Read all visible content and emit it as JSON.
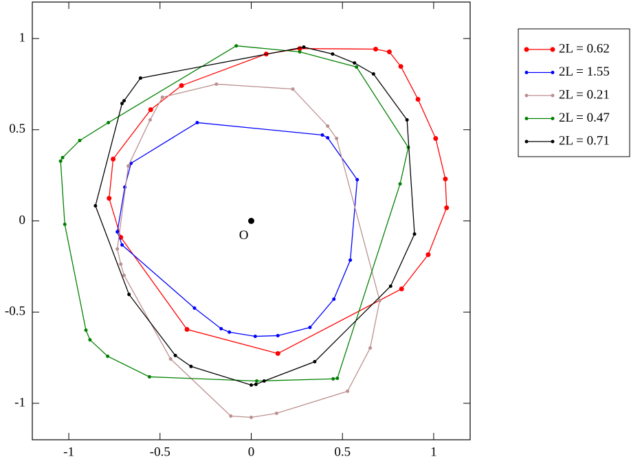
{
  "chart_data": {
    "type": "line",
    "closed": true,
    "xlim": [
      -1.2,
      1.2
    ],
    "ylim": [
      -1.2,
      1.2
    ],
    "xticks": [
      -1,
      -0.5,
      0,
      0.5,
      1
    ],
    "yticks": [
      -1,
      -0.5,
      0,
      0.5,
      1
    ],
    "grid": false,
    "legend": "outside-right",
    "annotations": [
      {
        "text": "O",
        "x": 0,
        "y": 0
      }
    ],
    "series": [
      {
        "name": "2L = 0.62",
        "color": "#ff0000",
        "marker_size": 3.5,
        "x": [
          -0.382,
          0.082,
          0.266,
          0.682,
          0.757,
          0.82,
          0.914,
          1.011,
          1.064,
          1.071,
          0.97,
          0.824,
          0.146,
          -0.352,
          -0.715,
          -0.779,
          -0.757,
          -0.551
        ],
        "values": [
          0.742,
          0.915,
          0.945,
          0.942,
          0.927,
          0.847,
          0.667,
          0.452,
          0.23,
          0.072,
          -0.185,
          -0.373,
          -0.727,
          -0.595,
          -0.09,
          0.124,
          0.339,
          0.61
        ]
      },
      {
        "name": "2L = 1.55",
        "color": "#0000ff",
        "marker_size": 2.5,
        "x": [
          -0.296,
          0.39,
          0.419,
          0.581,
          0.543,
          0.453,
          0.322,
          0.146,
          0.022,
          -0.12,
          -0.165,
          -0.311,
          -0.708,
          -0.734,
          -0.693,
          -0.659
        ],
        "values": [
          0.539,
          0.471,
          0.456,
          0.226,
          -0.215,
          -0.429,
          -0.584,
          -0.629,
          -0.633,
          -0.61,
          -0.591,
          -0.478,
          -0.132,
          -0.06,
          0.185,
          0.316
        ]
      },
      {
        "name": "2L = 0.21",
        "color": "#bc8f8f",
        "marker_size": 2.5,
        "x": [
          -0.191,
          0.228,
          0.419,
          0.468,
          0.704,
          0.652,
          0.528,
          0.139,
          0.0,
          -0.112,
          -0.442,
          -0.697,
          -0.715,
          -0.734,
          -0.674,
          -0.554,
          -0.487
        ],
        "values": [
          0.75,
          0.723,
          0.52,
          0.452,
          -0.437,
          -0.697,
          -0.934,
          -1.055,
          -1.077,
          -1.07,
          -0.757,
          -0.298,
          -0.237,
          -0.154,
          0.301,
          0.554,
          0.678
        ]
      },
      {
        "name": "2L = 0.47",
        "color": "#008000",
        "marker_size": 2.5,
        "x": [
          -0.082,
          0.266,
          0.577,
          0.861,
          0.816,
          0.472,
          0.449,
          0.03,
          -0.558,
          -0.787,
          -0.884,
          -0.906,
          -1.022,
          -1.045,
          -1.034,
          -0.94,
          -0.783
        ],
        "values": [
          0.96,
          0.927,
          0.844,
          0.403,
          0.203,
          -0.863,
          -0.866,
          -0.878,
          -0.855,
          -0.742,
          -0.652,
          -0.599,
          -0.019,
          0.328,
          0.347,
          0.441,
          0.539
        ]
      },
      {
        "name": "2L = 0.71",
        "color": "#000000",
        "marker_size": 2.5,
        "x": [
          0.288,
          0.446,
          0.566,
          0.67,
          0.854,
          0.895,
          0.764,
          0.348,
          0.071,
          0.026,
          0.0,
          -0.33,
          -0.416,
          -0.67,
          -0.854,
          -0.708,
          -0.697,
          -0.607
        ],
        "values": [
          0.953,
          0.915,
          0.866,
          0.806,
          0.554,
          -0.072,
          -0.358,
          -0.772,
          -0.878,
          -0.896,
          -0.9,
          -0.798,
          -0.738,
          -0.403,
          0.083,
          0.644,
          0.659,
          0.783
        ]
      }
    ]
  }
}
